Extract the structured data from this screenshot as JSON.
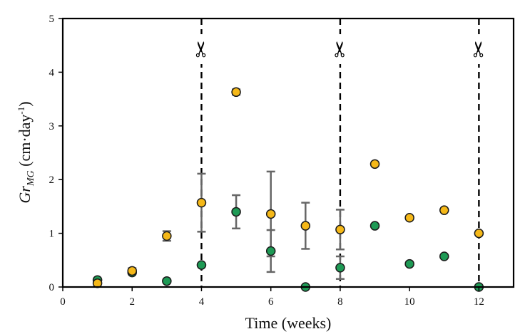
{
  "chart_data": {
    "type": "scatter",
    "xlabel": "Time (weeks)",
    "ylabel_main": "Gr",
    "ylabel_sub": "MG",
    "ylabel_unit": " (cm·day",
    "ylabel_exp": "-1",
    "ylabel_close": ")",
    "xlim": [
      0,
      13
    ],
    "ylim": [
      0,
      5
    ],
    "xticks": [
      0,
      2,
      4,
      6,
      8,
      10,
      12
    ],
    "yticks": [
      0,
      1,
      2,
      3,
      4,
      5
    ],
    "cut_weeks": [
      4,
      8,
      12
    ],
    "cut_icon": "scissors-icon",
    "cut_glyph": "✂",
    "series": [
      {
        "name": "yellow",
        "color": "#F5B818",
        "points": [
          {
            "x": 1,
            "y": 0.07,
            "err": 0
          },
          {
            "x": 2,
            "y": 0.3,
            "err": 0.05
          },
          {
            "x": 3,
            "y": 0.95,
            "err": 0.09
          },
          {
            "x": 4,
            "y": 1.57,
            "err": 0.54
          },
          {
            "x": 5,
            "y": 3.63,
            "err": 0.05
          },
          {
            "x": 6,
            "y": 1.36,
            "err": 0.79
          },
          {
            "x": 7,
            "y": 1.14,
            "err": 0.43
          },
          {
            "x": 8,
            "y": 1.07,
            "err": 0.37
          },
          {
            "x": 9,
            "y": 2.29,
            "err": 0
          },
          {
            "x": 10,
            "y": 1.29,
            "err": 0
          },
          {
            "x": 11,
            "y": 1.43,
            "err": 0
          },
          {
            "x": 12,
            "y": 1.0,
            "err": 0
          }
        ]
      },
      {
        "name": "green",
        "color": "#1E9A55",
        "points": [
          {
            "x": 1,
            "y": 0.13,
            "err": 0
          },
          {
            "x": 2,
            "y": 0.27,
            "err": 0
          },
          {
            "x": 3,
            "y": 0.11,
            "err": 0
          },
          {
            "x": 4,
            "y": 0.41,
            "err": 0
          },
          {
            "x": 5,
            "y": 1.4,
            "err": 0.31
          },
          {
            "x": 6,
            "y": 0.67,
            "err": 0.39
          },
          {
            "x": 7,
            "y": 0.0,
            "err": 0
          },
          {
            "x": 8,
            "y": 0.36,
            "err": 0.21
          },
          {
            "x": 9,
            "y": 1.14,
            "err": 0
          },
          {
            "x": 10,
            "y": 0.43,
            "err": 0
          },
          {
            "x": 11,
            "y": 0.57,
            "err": 0
          },
          {
            "x": 12,
            "y": 0.0,
            "err": 0
          }
        ]
      }
    ]
  }
}
